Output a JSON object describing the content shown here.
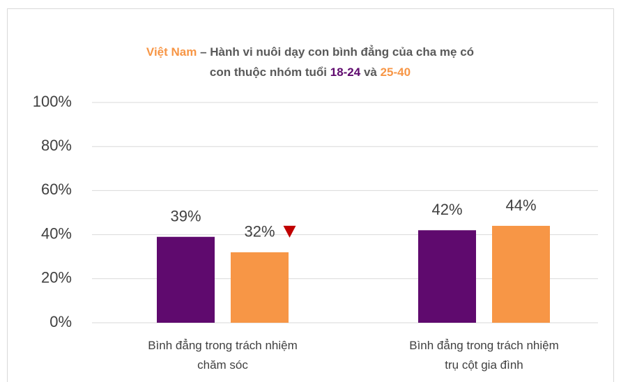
{
  "chart_data": {
    "type": "bar",
    "title_lines": [
      [
        {
          "text": "Việt Nam",
          "color": "#f79646"
        },
        {
          "text": " – Hành vi nuôi dạy con bình đẳng của cha mẹ có",
          "color": "#595959"
        }
      ],
      [
        {
          "text": "con thuộc nhóm tuổi ",
          "color": "#595959"
        },
        {
          "text": "18-24",
          "color": "#5f0a6e"
        },
        {
          "text": " và ",
          "color": "#595959"
        },
        {
          "text": "25-40",
          "color": "#f79646"
        }
      ]
    ],
    "categories": [
      [
        "Bình đẳng trong trách nhiệm",
        "chăm sóc"
      ],
      [
        "Bình đẳng trong trách nhiệm",
        "trụ cột gia đình"
      ]
    ],
    "series": [
      {
        "color": "#5f0a6e",
        "values": [
          39,
          42
        ],
        "value_labels": [
          "39%",
          "42%"
        ]
      },
      {
        "color": "#f79646",
        "values": [
          32,
          44
        ],
        "value_labels": [
          "32%",
          "44%"
        ]
      }
    ],
    "ylim": [
      0,
      100
    ],
    "yticks": [
      {
        "value": 0,
        "label": "0%"
      },
      {
        "value": 20,
        "label": "20%"
      },
      {
        "value": 40,
        "label": "40%"
      },
      {
        "value": 60,
        "label": "60%"
      },
      {
        "value": 80,
        "label": "80%"
      },
      {
        "value": 100,
        "label": "100%"
      }
    ],
    "grid": true
  }
}
